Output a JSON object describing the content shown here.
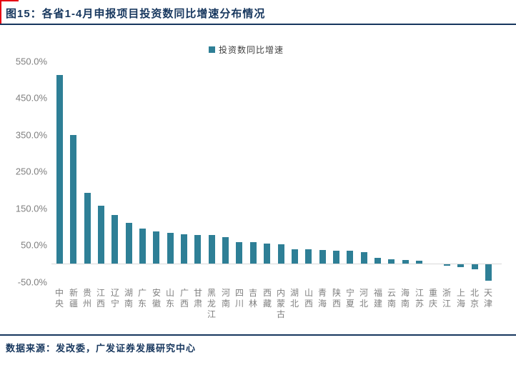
{
  "title": "图15：各省1-4月申报项目投资数同比增速分布情况",
  "source": "数据来源：发改委，广发证券发展研究中心",
  "legend": {
    "label": "投资数同比增速"
  },
  "colors": {
    "bar": "#2E7F96",
    "title_text": "#17375E",
    "rule": "#17375E",
    "axis_text": "#7F7F7F",
    "baseline": "#D9D9D9",
    "corner_accent": "#E60012",
    "background": "#FFFFFF"
  },
  "chart_data": {
    "type": "bar",
    "title": "各省1-4月申报项目投资数同比增速分布情况",
    "series_name": "投资数同比增速",
    "unit": "%",
    "grid": false,
    "legend_position": "top-center",
    "ylim": [
      -50,
      550
    ],
    "ytick_interval": 100,
    "yticks": [
      {
        "label": "550.0%",
        "value": 550
      },
      {
        "label": "450.0%",
        "value": 450
      },
      {
        "label": "350.0%",
        "value": 350
      },
      {
        "label": "250.0%",
        "value": 250
      },
      {
        "label": "150.0%",
        "value": 150
      },
      {
        "label": "50.0%",
        "value": 50
      },
      {
        "label": "-50.0%",
        "value": -50
      }
    ],
    "categories": [
      "中央",
      "新疆",
      "贵州",
      "江西",
      "辽宁",
      "湖南",
      "广东",
      "安徽",
      "山东",
      "广西",
      "甘肃",
      "黑龙江",
      "河南",
      "四川",
      "吉林",
      "西藏",
      "内蒙古",
      "湖北",
      "山西",
      "青海",
      "陕西",
      "宁夏",
      "河北",
      "福建",
      "云南",
      "海南",
      "江苏",
      "重庆",
      "浙江",
      "上海",
      "北京",
      "天津"
    ],
    "values": [
      512,
      350,
      193,
      158,
      132,
      110,
      96,
      87,
      84,
      79,
      78,
      77,
      72,
      59,
      58,
      55,
      52,
      39,
      38,
      37,
      35,
      34,
      31,
      15,
      12,
      10,
      8,
      0,
      -4,
      -8,
      -13,
      -45
    ]
  }
}
